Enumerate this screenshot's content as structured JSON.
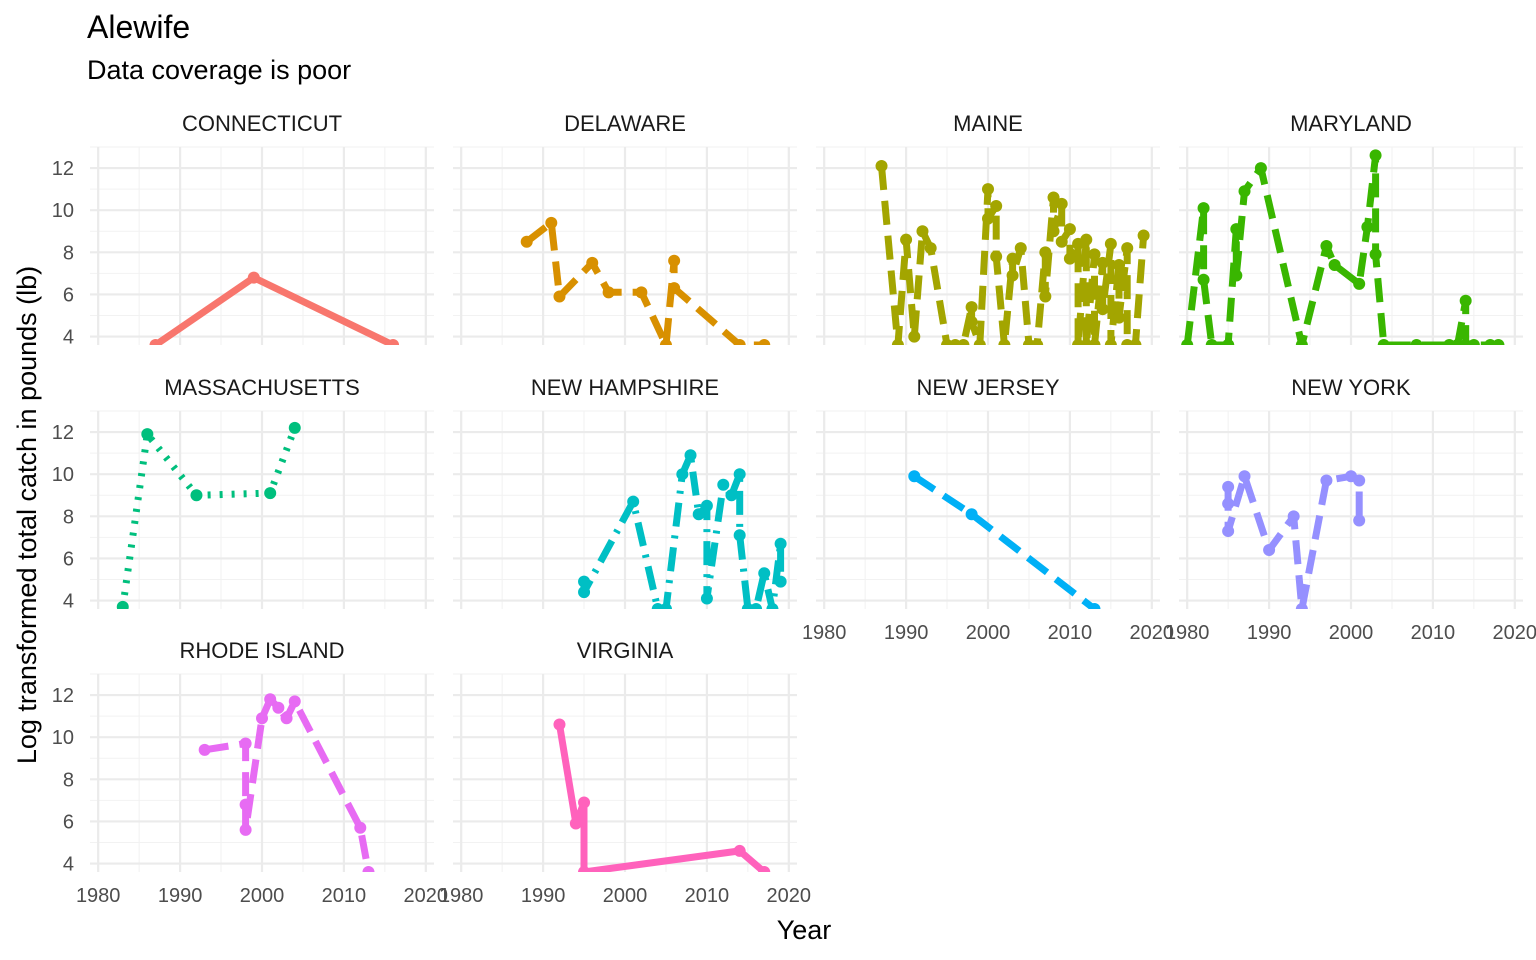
{
  "chart_data": {
    "type": "line",
    "title": "Alewife",
    "subtitle": "Data coverage is poor",
    "xlabel": "Year",
    "ylabel": "Log transformed  total catch in pounds (lb)",
    "xlim": [
      1979,
      2021
    ],
    "ylim": [
      3.6,
      13.0
    ],
    "xticks": [
      1980,
      1990,
      2000,
      2010,
      2020
    ],
    "yticks": [
      4,
      6,
      8,
      10,
      12
    ],
    "grid": true,
    "series": [
      {
        "name": "CONNECTICUT",
        "color": "#F8766D",
        "dash": "solid",
        "x": [
          1987,
          1999,
          2016
        ],
        "y": [
          3.6,
          6.8,
          3.6
        ]
      },
      {
        "name": "DELAWARE",
        "color": "#D89000",
        "dash": "dashed",
        "x": [
          1988,
          1991,
          1992,
          1996,
          1998,
          2002,
          2005,
          2006,
          2006,
          2014,
          2017
        ],
        "y": [
          8.5,
          9.4,
          5.9,
          7.5,
          6.1,
          6.1,
          3.6,
          7.6,
          6.3,
          3.6,
          3.6
        ]
      },
      {
        "name": "MAINE",
        "color": "#A3A500",
        "dash": "dashed",
        "x": [
          1987,
          1989,
          1990,
          1991,
          1992,
          1993,
          1995,
          1996,
          1997,
          1998,
          1998,
          1999,
          2000,
          2000,
          2001,
          2001,
          2002,
          2003,
          2003,
          2004,
          2005,
          2006,
          2007,
          2007,
          2008,
          2008,
          2009,
          2009,
          2010,
          2010,
          2011,
          2011,
          2012,
          2012,
          2013,
          2013,
          2014,
          2014,
          2015,
          2015,
          2016,
          2016,
          2017,
          2017,
          2018,
          2019
        ],
        "y": [
          12.1,
          3.6,
          8.6,
          4.0,
          9.0,
          8.2,
          3.6,
          3.6,
          3.6,
          5.4,
          4.7,
          3.6,
          11.0,
          9.6,
          10.2,
          7.8,
          3.6,
          7.7,
          6.9,
          8.2,
          3.6,
          3.6,
          8.0,
          5.9,
          10.6,
          9.0,
          10.3,
          8.5,
          9.1,
          7.7,
          8.4,
          3.6,
          8.6,
          3.6,
          7.9,
          3.6,
          7.5,
          5.3,
          8.4,
          3.6,
          7.4,
          4.9,
          8.2,
          3.6,
          3.6,
          8.8
        ]
      },
      {
        "name": "MARYLAND",
        "color": "#39B600",
        "dash": "dashed",
        "x": [
          1980,
          1982,
          1982,
          1983,
          1985,
          1985,
          1986,
          1986,
          1987,
          1989,
          1994,
          1997,
          1998,
          2001,
          2002,
          2003,
          2003,
          2004,
          2008,
          2012,
          2013,
          2014,
          2014,
          2015,
          2017,
          2018
        ],
        "y": [
          3.6,
          10.1,
          6.7,
          3.6,
          3.6,
          3.6,
          9.1,
          6.9,
          10.9,
          12.0,
          3.6,
          8.3,
          7.4,
          6.5,
          9.2,
          12.6,
          7.9,
          3.6,
          3.6,
          3.6,
          3.6,
          5.7,
          3.6,
          3.6,
          3.6,
          3.6
        ]
      },
      {
        "name": "MASSACHUSETTS",
        "color": "#00BF7D",
        "dash": "dotted",
        "x": [
          1983,
          1986,
          1992,
          2001,
          2004
        ],
        "y": [
          3.7,
          11.9,
          9.0,
          9.1,
          12.2
        ]
      },
      {
        "name": "NEW HAMPSHIRE",
        "color": "#00BFC4",
        "dash": "dashdot",
        "x": [
          1995,
          1995,
          2001,
          2004,
          2005,
          2007,
          2008,
          2009,
          2010,
          2010,
          2012,
          2013,
          2014,
          2014,
          2015,
          2016,
          2017,
          2018,
          2019,
          2019
        ],
        "y": [
          4.9,
          4.4,
          8.7,
          3.6,
          3.6,
          10.0,
          10.9,
          8.1,
          8.5,
          4.1,
          9.5,
          9.0,
          10.0,
          7.1,
          3.6,
          3.6,
          5.3,
          3.6,
          6.7,
          4.9
        ]
      },
      {
        "name": "NEW JERSEY",
        "color": "#00B0F6",
        "dash": "dashed",
        "x": [
          1991,
          1998,
          2013
        ],
        "y": [
          9.9,
          8.1,
          3.6
        ]
      },
      {
        "name": "NEW YORK",
        "color": "#9590FF",
        "dash": "dashed",
        "x": [
          1985,
          1985,
          1985,
          1987,
          1990,
          1993,
          1994,
          1997,
          2000,
          2001,
          2001
        ],
        "y": [
          9.4,
          8.6,
          7.3,
          9.9,
          6.4,
          8.0,
          3.6,
          9.7,
          9.9,
          9.7,
          7.8
        ]
      },
      {
        "name": "RHODE ISLAND",
        "color": "#E76BF3",
        "dash": "dashed",
        "x": [
          1993,
          1998,
          1998,
          1998,
          2000,
          2001,
          2002,
          2003,
          2004,
          2012,
          2013
        ],
        "y": [
          9.4,
          9.7,
          6.8,
          5.6,
          10.9,
          11.8,
          11.4,
          10.9,
          11.7,
          5.7,
          3.6
        ]
      },
      {
        "name": "VIRGINIA",
        "color": "#FF62BC",
        "dash": "solid",
        "x": [
          1992,
          1994,
          1995,
          1995,
          2014,
          2017
        ],
        "y": [
          10.6,
          5.9,
          6.9,
          3.6,
          4.6,
          3.6
        ]
      }
    ]
  }
}
